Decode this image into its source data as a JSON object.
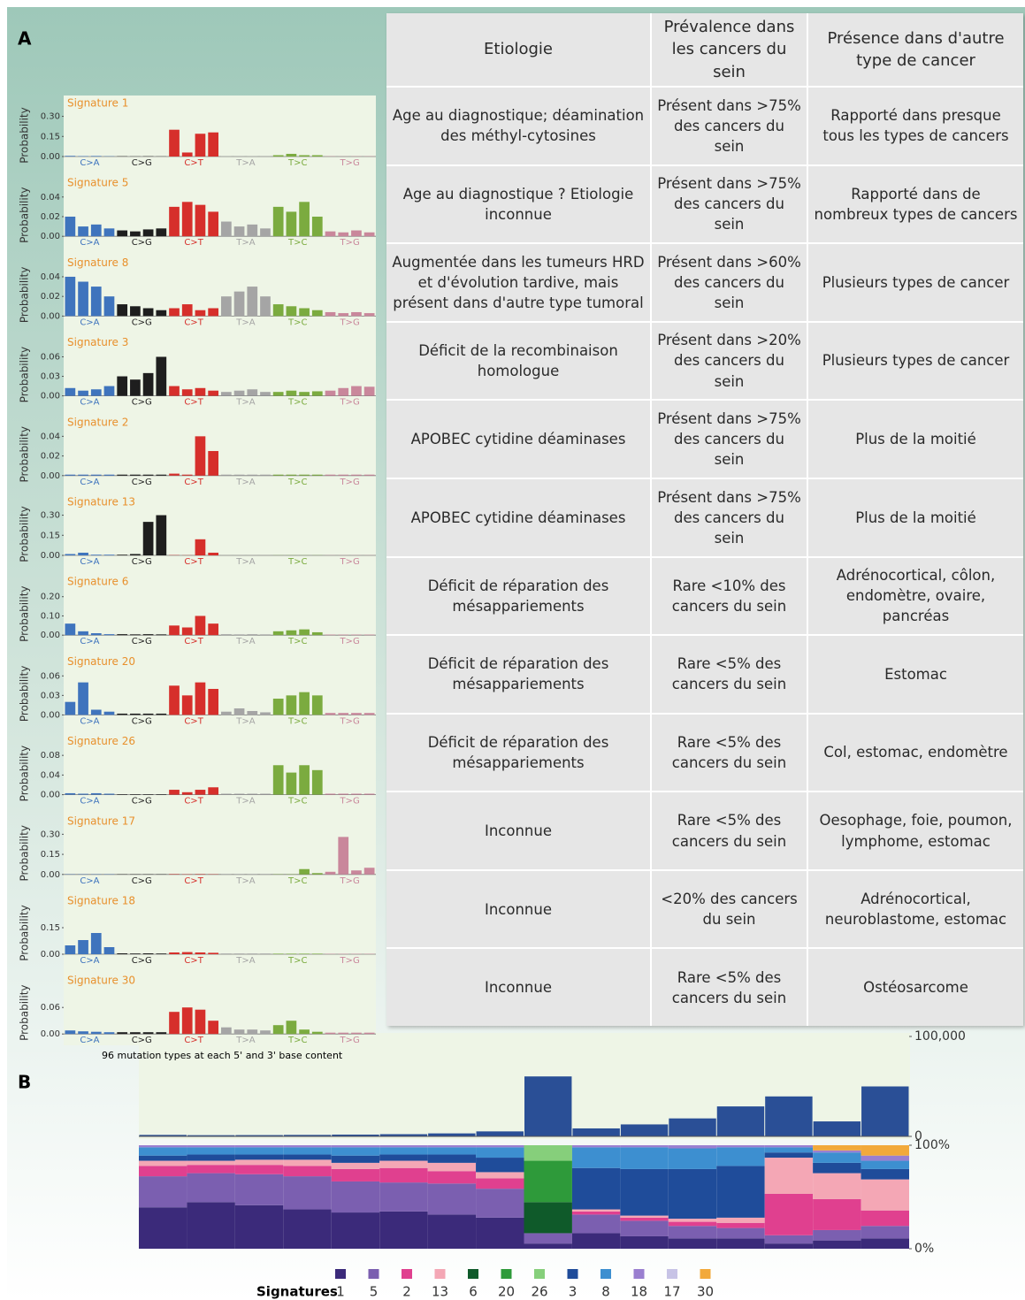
{
  "panel_a_label": "A",
  "panel_b_label": "B",
  "table": {
    "header": [
      "Etiologie",
      "Prévalence dans les cancers du sein",
      "Présence dans d'autre type de cancer"
    ],
    "rows": [
      [
        "Age au diagnostique; déamination des méthyl-cytosines",
        "Présent dans >75% des cancers du sein",
        "Rapporté dans presque tous les types de cancers"
      ],
      [
        "Age au diagnostique ? Etiologie inconnue",
        "Présent dans >75% des cancers du sein",
        "Rapporté dans de nombreux types de cancers"
      ],
      [
        "Augmentée dans les tumeurs HRD et d'évolution tardive, mais présent dans d'autre type tumoral",
        "Présent dans >60% des cancers du sein",
        "Plusieurs types de cancer"
      ],
      [
        "Déficit de la recombinaison homologue",
        "Présent dans >20% des cancers du sein",
        "Plusieurs types de cancer"
      ],
      [
        "APOBEC cytidine déaminases",
        "Présent dans >75% des cancers du sein",
        "Plus de la moitié"
      ],
      [
        "APOBEC cytidine déaminases",
        "Présent dans >75% des cancers du sein",
        "Plus de la moitié"
      ],
      [
        "Déficit de réparation des mésappariements",
        "Rare <10% des cancers du sein",
        "Adrénocortical, côlon, endomètre, ovaire, pancréas"
      ],
      [
        "Déficit de réparation des mésappariements",
        "Rare <5% des cancers du sein",
        "Estomac"
      ],
      [
        "Déficit de réparation des mésappariements",
        "Rare <5% des cancers du sein",
        "Col, estomac, endomètre"
      ],
      [
        "Inconnue",
        "Rare <5% des cancers du sein",
        "Oesophage, foie, poumon, lymphome, estomac"
      ],
      [
        "Inconnue",
        "<20% des cancers du sein",
        "Adrénocortical, neuroblastome, estomac"
      ],
      [
        "Inconnue",
        "Rare <5% des cancers du sein",
        "Ostéosarcome"
      ]
    ]
  },
  "spectra": {
    "type": "bar",
    "y_label": "Probability",
    "x_label": "96 mutation types at each 5' and 3' base content",
    "classes": [
      {
        "name": "C>A",
        "color": "#3f74bd"
      },
      {
        "name": "C>G",
        "color": "#1e1e1e"
      },
      {
        "name": "C>T",
        "color": "#d62f2b"
      },
      {
        "name": "T>A",
        "color": "#a5a5a5"
      },
      {
        "name": "T>C",
        "color": "#7bab3f"
      },
      {
        "name": "T>G",
        "color": "#c9879b"
      }
    ],
    "signatures": [
      {
        "name": "Signature 1",
        "ylim": [
          0,
          0.33
        ],
        "yticks": [
          {
            "value": 0.3,
            "label": "0.30"
          },
          {
            "value": 0.15,
            "label": "0.15"
          },
          {
            "value": 0,
            "label": "0.00"
          }
        ],
        "values": [
          0.005,
          0.003,
          0.004,
          0.002,
          0.002,
          0.001,
          0.002,
          0.001,
          0.2,
          0.03,
          0.17,
          0.18,
          0.003,
          0.002,
          0.003,
          0.002,
          0.01,
          0.02,
          0.01,
          0.01,
          0.002,
          0.001,
          0.002,
          0.002
        ]
      },
      {
        "name": "Signature 5",
        "ylim": [
          0,
          0.045
        ],
        "yticks": [
          {
            "value": 0.04,
            "label": "0.04"
          },
          {
            "value": 0.02,
            "label": "0.02"
          },
          {
            "value": 0,
            "label": "0.00"
          }
        ],
        "values": [
          0.02,
          0.01,
          0.012,
          0.008,
          0.006,
          0.005,
          0.007,
          0.008,
          0.03,
          0.035,
          0.032,
          0.025,
          0.015,
          0.01,
          0.012,
          0.008,
          0.03,
          0.025,
          0.035,
          0.02,
          0.005,
          0.004,
          0.006,
          0.004
        ]
      },
      {
        "name": "Signature 8",
        "ylim": [
          0,
          0.045
        ],
        "yticks": [
          {
            "value": 0.04,
            "label": "0.04"
          },
          {
            "value": 0.02,
            "label": "0.02"
          },
          {
            "value": 0,
            "label": "0.00"
          }
        ],
        "values": [
          0.04,
          0.035,
          0.03,
          0.02,
          0.012,
          0.01,
          0.008,
          0.006,
          0.008,
          0.012,
          0.006,
          0.008,
          0.02,
          0.025,
          0.03,
          0.02,
          0.012,
          0.01,
          0.008,
          0.006,
          0.004,
          0.003,
          0.004,
          0.003
        ]
      },
      {
        "name": "Signature 3",
        "ylim": [
          0,
          0.068
        ],
        "yticks": [
          {
            "value": 0.06,
            "label": "0.06"
          },
          {
            "value": 0.03,
            "label": "0.03"
          },
          {
            "value": 0,
            "label": "0.00"
          }
        ],
        "values": [
          0.012,
          0.008,
          0.01,
          0.015,
          0.03,
          0.025,
          0.035,
          0.06,
          0.015,
          0.01,
          0.012,
          0.008,
          0.006,
          0.008,
          0.01,
          0.006,
          0.006,
          0.008,
          0.006,
          0.007,
          0.008,
          0.012,
          0.015,
          0.014
        ]
      },
      {
        "name": "Signature 2",
        "ylim": [
          0,
          0.045
        ],
        "yticks": [
          {
            "value": 0.04,
            "label": "0.04"
          },
          {
            "value": 0.02,
            "label": "0.02"
          },
          {
            "value": 0,
            "label": "0.00"
          }
        ],
        "values": [
          0.001,
          0.001,
          0.001,
          0.001,
          0.001,
          0.001,
          0.001,
          0.001,
          0.002,
          0.001,
          0.04,
          0.025,
          0.001,
          0.001,
          0.001,
          0.001,
          0.001,
          0.001,
          0.001,
          0.001,
          0.001,
          0.001,
          0.001,
          0.001
        ]
      },
      {
        "name": "Signature 13",
        "ylim": [
          0,
          0.33
        ],
        "yticks": [
          {
            "value": 0.3,
            "label": "0.30"
          },
          {
            "value": 0.15,
            "label": "0.15"
          },
          {
            "value": 0,
            "label": "0.00"
          }
        ],
        "values": [
          0.01,
          0.02,
          0.005,
          0.005,
          0.005,
          0.01,
          0.25,
          0.3,
          0.002,
          0.001,
          0.12,
          0.02,
          0.001,
          0.001,
          0.001,
          0.001,
          0.001,
          0.001,
          0.001,
          0.001,
          0.001,
          0.001,
          0.001,
          0.001
        ]
      },
      {
        "name": "Signature 6",
        "ylim": [
          0,
          0.23
        ],
        "yticks": [
          {
            "value": 0.2,
            "label": "0.20"
          },
          {
            "value": 0.1,
            "label": "0.10"
          },
          {
            "value": 0,
            "label": "0.00"
          }
        ],
        "values": [
          0.06,
          0.02,
          0.01,
          0.005,
          0.005,
          0.004,
          0.005,
          0.004,
          0.05,
          0.04,
          0.1,
          0.06,
          0.005,
          0.004,
          0.005,
          0.004,
          0.02,
          0.025,
          0.03,
          0.015,
          0.003,
          0.003,
          0.003,
          0.003
        ]
      },
      {
        "name": "Signature 20",
        "ylim": [
          0,
          0.068
        ],
        "yticks": [
          {
            "value": 0.06,
            "label": "0.06"
          },
          {
            "value": 0.03,
            "label": "0.03"
          },
          {
            "value": 0,
            "label": "0.00"
          }
        ],
        "values": [
          0.02,
          0.05,
          0.008,
          0.005,
          0.002,
          0.002,
          0.002,
          0.002,
          0.045,
          0.03,
          0.05,
          0.04,
          0.005,
          0.01,
          0.006,
          0.004,
          0.025,
          0.03,
          0.035,
          0.03,
          0.003,
          0.003,
          0.003,
          0.003
        ]
      },
      {
        "name": "Signature 26",
        "ylim": [
          0,
          0.09
        ],
        "yticks": [
          {
            "value": 0.08,
            "label": "0.08"
          },
          {
            "value": 0.04,
            "label": "0.04"
          },
          {
            "value": 0,
            "label": "0.00"
          }
        ],
        "values": [
          0.003,
          0.002,
          0.003,
          0.002,
          0.001,
          0.001,
          0.001,
          0.001,
          0.01,
          0.005,
          0.01,
          0.015,
          0.002,
          0.002,
          0.002,
          0.002,
          0.06,
          0.045,
          0.06,
          0.05,
          0.002,
          0.002,
          0.002,
          0.002
        ]
      },
      {
        "name": "Signature 17",
        "ylim": [
          0,
          0.33
        ],
        "yticks": [
          {
            "value": 0.3,
            "label": "0.30"
          },
          {
            "value": 0.15,
            "label": "0.15"
          },
          {
            "value": 0,
            "label": "0.00"
          }
        ],
        "values": [
          0.002,
          0.002,
          0.002,
          0.002,
          0.002,
          0.002,
          0.002,
          0.002,
          0.003,
          0.002,
          0.003,
          0.002,
          0.002,
          0.002,
          0.002,
          0.002,
          0.002,
          0.002,
          0.04,
          0.01,
          0.02,
          0.28,
          0.03,
          0.05
        ]
      },
      {
        "name": "Signature 18",
        "ylim": [
          0,
          0.25
        ],
        "yticks": [
          {
            "value": 0.15,
            "label": "0.15"
          },
          {
            "value": 0,
            "label": "0.00"
          }
        ],
        "values": [
          0.05,
          0.08,
          0.12,
          0.04,
          0.005,
          0.004,
          0.005,
          0.004,
          0.01,
          0.012,
          0.01,
          0.008,
          0.004,
          0.004,
          0.004,
          0.004,
          0.003,
          0.003,
          0.003,
          0.003,
          0.002,
          0.002,
          0.002,
          0.002
        ]
      },
      {
        "name": "Signature 30",
        "ylim": [
          0,
          0.1
        ],
        "yticks": [
          {
            "value": 0.06,
            "label": "0.06"
          },
          {
            "value": 0,
            "label": "0.00"
          }
        ],
        "values": [
          0.008,
          0.006,
          0.005,
          0.004,
          0.004,
          0.004,
          0.004,
          0.004,
          0.05,
          0.06,
          0.055,
          0.03,
          0.015,
          0.01,
          0.01,
          0.008,
          0.02,
          0.03,
          0.01,
          0.005,
          0.003,
          0.003,
          0.003,
          0.003
        ]
      }
    ]
  },
  "burden": {
    "type": "bar",
    "ylim": [
      0,
      100000
    ],
    "yticks": [
      {
        "value": 100000,
        "label": "100,000"
      },
      0
    ],
    "values": [
      1500,
      1200,
      1300,
      1500,
      1800,
      2200,
      3000,
      5000,
      60000,
      8000,
      12000,
      18000,
      30000,
      40000,
      15000,
      50000
    ],
    "color": "#2a4f96"
  },
  "composition": {
    "type": "stacked_bar",
    "ylim": [
      0,
      100
    ],
    "yticks": [
      {
        "value": 100,
        "label": "100%"
      },
      {
        "value": 0,
        "label": "0%"
      }
    ],
    "legend_title": "Signatures",
    "series": [
      {
        "name": "1",
        "color": "#3b2a7a",
        "values": [
          40,
          45,
          42,
          38,
          35,
          36,
          33,
          30,
          5,
          15,
          12,
          10,
          10,
          5,
          8,
          10
        ]
      },
      {
        "name": "5",
        "color": "#7b5fb0",
        "values": [
          30,
          28,
          30,
          32,
          30,
          28,
          30,
          28,
          10,
          18,
          15,
          12,
          10,
          8,
          10,
          12
        ]
      },
      {
        "name": "2",
        "color": "#e0408f",
        "values": [
          10,
          8,
          9,
          10,
          12,
          14,
          12,
          10,
          0,
          3,
          3,
          4,
          5,
          40,
          30,
          15
        ]
      },
      {
        "name": "13",
        "color": "#f4a7b5",
        "values": [
          5,
          4,
          5,
          6,
          6,
          7,
          8,
          6,
          0,
          2,
          2,
          3,
          5,
          35,
          25,
          30
        ]
      },
      {
        "name": "6",
        "color": "#0f5a2a",
        "values": [
          0,
          0,
          0,
          0,
          0,
          0,
          0,
          0,
          30,
          0,
          0,
          0,
          0,
          0,
          0,
          0
        ]
      },
      {
        "name": "20",
        "color": "#2e9a3a",
        "values": [
          0,
          0,
          0,
          0,
          0,
          0,
          0,
          0,
          40,
          0,
          0,
          0,
          0,
          0,
          0,
          0
        ]
      },
      {
        "name": "26",
        "color": "#86cf7b",
        "values": [
          0,
          0,
          0,
          0,
          0,
          0,
          0,
          0,
          15,
          0,
          0,
          0,
          0,
          0,
          0,
          0
        ]
      },
      {
        "name": "3",
        "color": "#1f4c9a",
        "values": [
          5,
          6,
          5,
          5,
          7,
          6,
          8,
          14,
          0,
          40,
          45,
          48,
          50,
          5,
          10,
          10
        ]
      },
      {
        "name": "8",
        "color": "#3d8fd0",
        "values": [
          8,
          7,
          7,
          7,
          8,
          7,
          7,
          10,
          0,
          20,
          21,
          20,
          18,
          5,
          10,
          8
        ]
      },
      {
        "name": "18",
        "color": "#9a7fd0",
        "values": [
          2,
          2,
          2,
          2,
          2,
          2,
          2,
          2,
          0,
          2,
          2,
          3,
          2,
          2,
          2,
          5
        ]
      },
      {
        "name": "17",
        "color": "#c7c3e6",
        "values": [
          0,
          0,
          0,
          0,
          0,
          0,
          0,
          0,
          0,
          0,
          0,
          0,
          0,
          0,
          0,
          0
        ]
      },
      {
        "name": "30",
        "color": "#f2a93b",
        "values": [
          0,
          0,
          0,
          0,
          0,
          0,
          0,
          0,
          0,
          0,
          0,
          0,
          0,
          0,
          5,
          10
        ]
      }
    ]
  }
}
